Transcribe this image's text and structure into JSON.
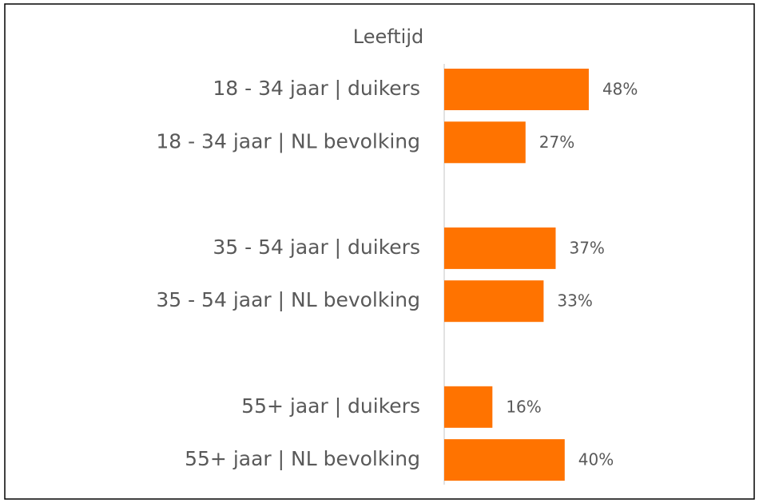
{
  "chart_data": {
    "type": "bar",
    "orientation": "horizontal",
    "title": "Leeftijd",
    "categories": [
      "18 - 34 jaar | duikers",
      "18 - 34 jaar | NL bevolking",
      null,
      "35 - 54 jaar | duikers",
      "35 - 54 jaar | NL bevolking",
      null,
      "55+ jaar | duikers",
      "55+ jaar | NL bevolking"
    ],
    "values": [
      48,
      27,
      null,
      37,
      33,
      null,
      16,
      40
    ],
    "value_labels": [
      "48%",
      "27%",
      null,
      "37%",
      "33%",
      null,
      "16%",
      "40%"
    ],
    "color": "#ff7300"
  }
}
